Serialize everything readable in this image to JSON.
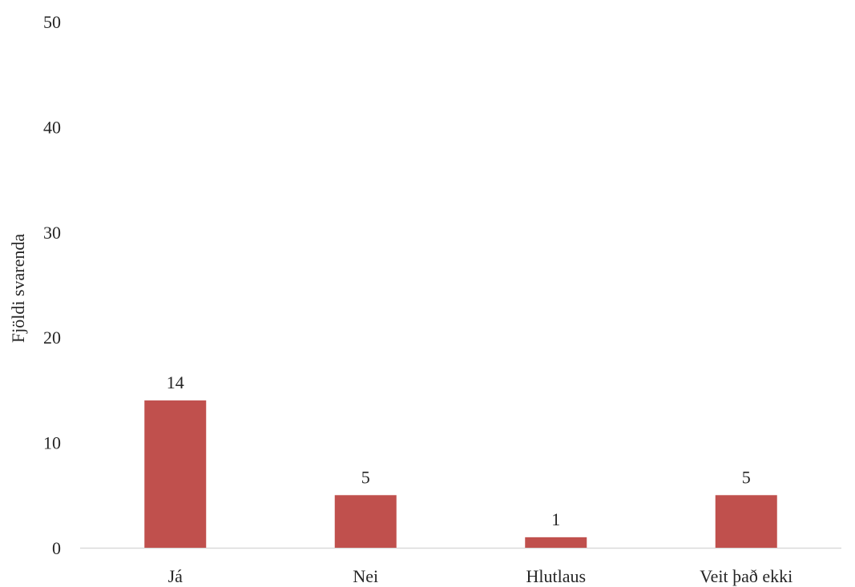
{
  "chart_data": {
    "type": "bar",
    "title": "",
    "xlabel": "",
    "ylabel": "Fjöldi svarenda",
    "categories": [
      "Já",
      "Nei",
      "Hlutlaus",
      "Veit það ekki"
    ],
    "values": [
      14,
      5,
      1,
      5
    ],
    "ylim": [
      0,
      50
    ],
    "yticks": [
      "0",
      "10",
      "20",
      "30",
      "40",
      "50"
    ],
    "data_labels": [
      "14",
      "5",
      "1",
      "5"
    ],
    "grid": false,
    "legend": "none",
    "bar_color": "#C0504D",
    "axis_color": "#D9D9D9"
  }
}
